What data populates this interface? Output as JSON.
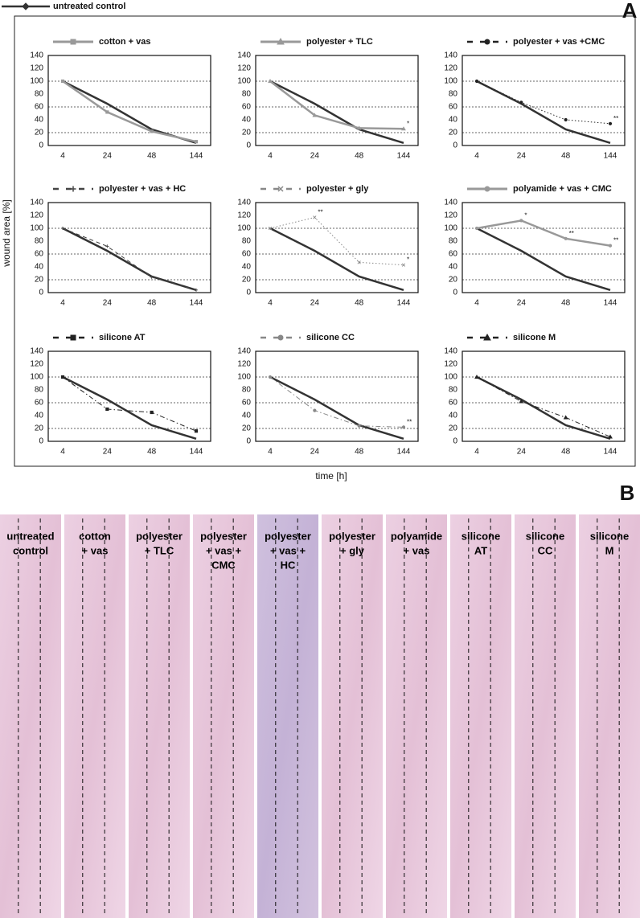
{
  "figure": {
    "panel_a": "A",
    "panel_b": "B",
    "y_label": "wound area [%]",
    "x_label": "time [h]"
  },
  "reference_series": {
    "name": "untreated control",
    "color": "#333333",
    "values": [
      100,
      65,
      25,
      4
    ]
  },
  "chart_data": [
    {
      "type": "line",
      "categories": [
        "4",
        "24",
        "48",
        "144"
      ],
      "ylim": [
        0,
        140
      ],
      "yticks": [
        0,
        20,
        40,
        60,
        80,
        100,
        120,
        140
      ],
      "grid": true,
      "series": [
        {
          "name": "cotton + vas",
          "color": "#999999",
          "dash": "solid",
          "marker": "square",
          "values": [
            100,
            52,
            22,
            6
          ]
        }
      ]
    },
    {
      "type": "line",
      "categories": [
        "4",
        "24",
        "48",
        "144"
      ],
      "ylim": [
        0,
        140
      ],
      "yticks": [
        0,
        20,
        40,
        60,
        80,
        100,
        120,
        140
      ],
      "grid": true,
      "series": [
        {
          "name": "polyester + TLC",
          "color": "#999999",
          "dash": "solid",
          "marker": "triangle",
          "values": [
            100,
            47,
            27,
            26
          ],
          "annotations": [
            null,
            null,
            null,
            "*"
          ]
        }
      ]
    },
    {
      "type": "line",
      "categories": [
        "4",
        "24",
        "48",
        "144"
      ],
      "ylim": [
        0,
        140
      ],
      "yticks": [
        0,
        20,
        40,
        60,
        80,
        100,
        120,
        140
      ],
      "grid": true,
      "series": [
        {
          "name": "polyester + vas +CMC",
          "color": "#222222",
          "dash": "dotted",
          "marker": "circle",
          "values": [
            100,
            67,
            40,
            34
          ],
          "annotations": [
            null,
            null,
            null,
            "**"
          ]
        }
      ]
    },
    {
      "type": "line",
      "categories": [
        "4",
        "24",
        "48",
        "144"
      ],
      "ylim": [
        0,
        140
      ],
      "yticks": [
        0,
        20,
        40,
        60,
        80,
        100,
        120,
        140
      ],
      "grid": true,
      "series": [
        {
          "name": "polyester + vas + HC",
          "color": "#444444",
          "dash": "dashed",
          "marker": "plus",
          "values": [
            100,
            72,
            24,
            4
          ]
        }
      ]
    },
    {
      "type": "line",
      "categories": [
        "4",
        "24",
        "48",
        "144"
      ],
      "ylim": [
        0,
        140
      ],
      "yticks": [
        0,
        20,
        40,
        60,
        80,
        100,
        120,
        140
      ],
      "grid": true,
      "series": [
        {
          "name": "polyester + gly",
          "color": "#888888",
          "dash": "dotted",
          "marker": "x",
          "values": [
            100,
            117,
            47,
            43
          ],
          "annotations": [
            null,
            "**",
            null,
            "*"
          ]
        }
      ]
    },
    {
      "type": "line",
      "categories": [
        "4",
        "24",
        "48",
        "144"
      ],
      "ylim": [
        0,
        140
      ],
      "yticks": [
        0,
        20,
        40,
        60,
        80,
        100,
        120,
        140
      ],
      "grid": true,
      "series": [
        {
          "name": "polyamide + vas + CMC",
          "color": "#999999",
          "dash": "solid",
          "marker": "circle",
          "values": [
            100,
            112,
            84,
            73
          ],
          "annotations": [
            null,
            "*",
            "**",
            "**"
          ]
        }
      ]
    },
    {
      "type": "line",
      "categories": [
        "4",
        "24",
        "48",
        "144"
      ],
      "ylim": [
        0,
        140
      ],
      "yticks": [
        0,
        20,
        40,
        60,
        80,
        100,
        120,
        140
      ],
      "grid": true,
      "series": [
        {
          "name": "silicone AT",
          "color": "#222222",
          "dash": "dashdot",
          "marker": "square",
          "values": [
            100,
            50,
            45,
            16
          ]
        }
      ]
    },
    {
      "type": "line",
      "categories": [
        "4",
        "24",
        "48",
        "144"
      ],
      "ylim": [
        0,
        140
      ],
      "yticks": [
        0,
        20,
        40,
        60,
        80,
        100,
        120,
        140
      ],
      "grid": true,
      "series": [
        {
          "name": "silicone CC",
          "color": "#888888",
          "dash": "dashdot",
          "marker": "circle",
          "values": [
            100,
            48,
            24,
            22
          ],
          "annotations": [
            null,
            null,
            null,
            "**"
          ]
        }
      ]
    },
    {
      "type": "line",
      "categories": [
        "4",
        "24",
        "48",
        "144"
      ],
      "ylim": [
        0,
        140
      ],
      "yticks": [
        0,
        20,
        40,
        60,
        80,
        100,
        120,
        140
      ],
      "grid": true,
      "series": [
        {
          "name": "silicone M",
          "color": "#222222",
          "dash": "dashdot",
          "marker": "triangle",
          "values": [
            100,
            62,
            37,
            7
          ]
        }
      ]
    }
  ],
  "histology": {
    "labels": [
      [
        "untreated",
        "control"
      ],
      [
        "cotton",
        "+ vas"
      ],
      [
        "polyester",
        "+ TLC"
      ],
      [
        "polyester",
        "+ vas +",
        "CMC"
      ],
      [
        "polyester",
        "+ vas +",
        "HC"
      ],
      [
        "polyester",
        "+ gly"
      ],
      [
        "polyamide",
        "+ vas"
      ],
      [
        "silicone",
        "AT"
      ],
      [
        "silicone",
        "CC"
      ],
      [
        "silicone",
        "M"
      ]
    ]
  }
}
